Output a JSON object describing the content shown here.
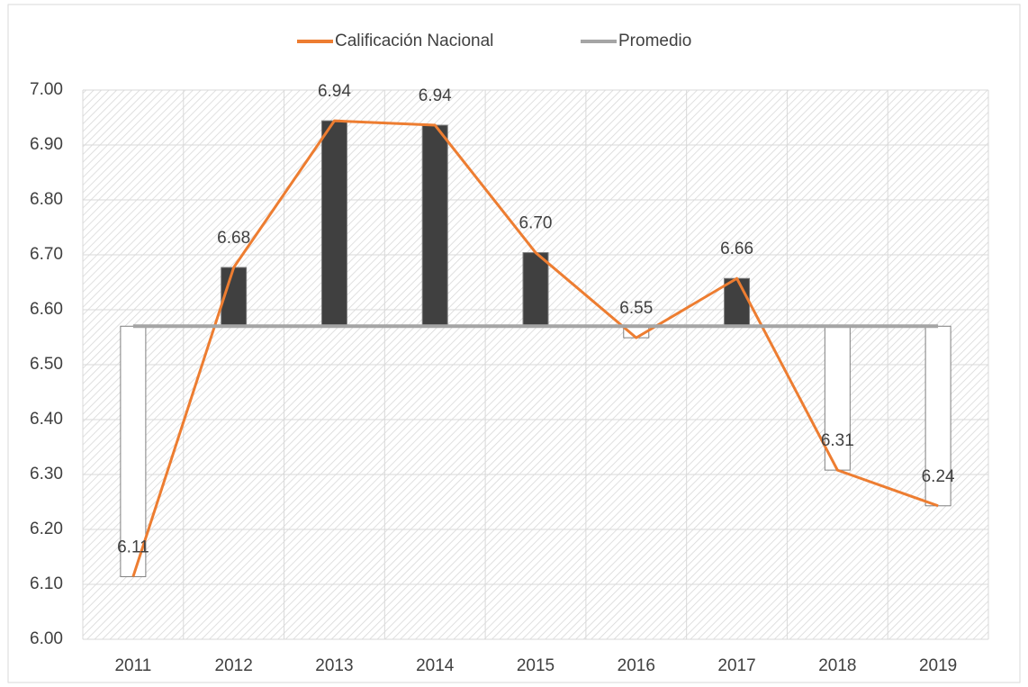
{
  "chart_data": {
    "type": "line",
    "categories": [
      "2011",
      "2012",
      "2013",
      "2014",
      "2015",
      "2016",
      "2017",
      "2018",
      "2019"
    ],
    "series": [
      {
        "name": "Calificación Nacional",
        "color": "#ed7d31",
        "values": [
          6.114,
          6.677,
          6.944,
          6.936,
          6.704,
          6.549,
          6.657,
          6.308,
          6.243
        ],
        "value_labels": [
          "6.11",
          "6.68",
          "6.94",
          "6.94",
          "6.70",
          "6.55",
          "6.66",
          "6.31",
          "6.24"
        ]
      },
      {
        "name": "Promedio",
        "color": "#a5a5a5",
        "values": [
          6.57,
          6.57,
          6.57,
          6.57,
          6.57,
          6.57,
          6.57,
          6.57,
          6.57
        ]
      }
    ],
    "up_down_bars": {
      "up_color": "#404040",
      "down_color": "#ffffff"
    },
    "ylim": [
      6.0,
      7.0
    ],
    "yticks": [
      {
        "value": 6.0,
        "label": "6.00"
      },
      {
        "value": 6.1,
        "label": "6.10"
      },
      {
        "value": 6.2,
        "label": "6.20"
      },
      {
        "value": 6.3,
        "label": "6.30"
      },
      {
        "value": 6.4,
        "label": "6.40"
      },
      {
        "value": 6.5,
        "label": "6.50"
      },
      {
        "value": 6.6,
        "label": "6.60"
      },
      {
        "value": 6.7,
        "label": "6.70"
      },
      {
        "value": 6.8,
        "label": "6.80"
      },
      {
        "value": 6.9,
        "label": "6.90"
      },
      {
        "value": 7.0,
        "label": "7.00"
      }
    ],
    "grid": true,
    "legend": "top"
  }
}
